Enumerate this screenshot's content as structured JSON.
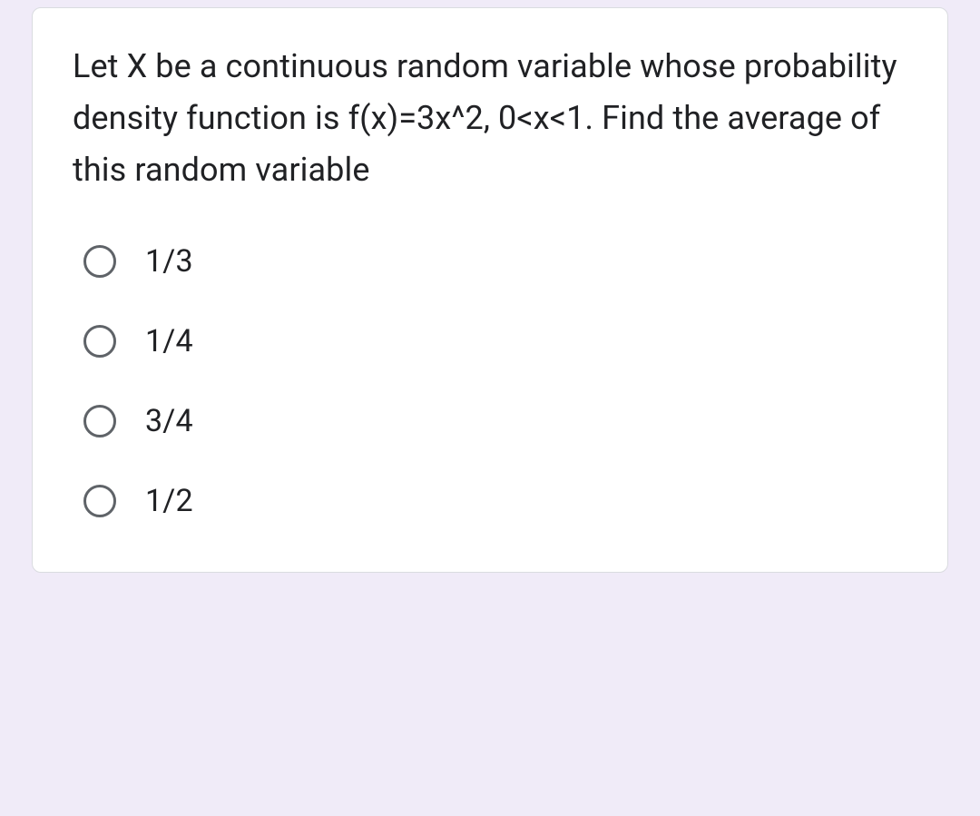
{
  "card": {
    "question": "Let X be a continuous random variable whose probability density function is f(x)=3x^2, 0<x<1. Find the average of this random variable",
    "options": [
      {
        "label": "1/3"
      },
      {
        "label": "1/4"
      },
      {
        "label": "3/4"
      },
      {
        "label": "1/2"
      }
    ]
  },
  "colors": {
    "page_background": "#f0ebf8",
    "card_background": "#ffffff",
    "card_border": "#dadce0",
    "text_primary": "#202124",
    "radio_border": "#5f6368"
  }
}
